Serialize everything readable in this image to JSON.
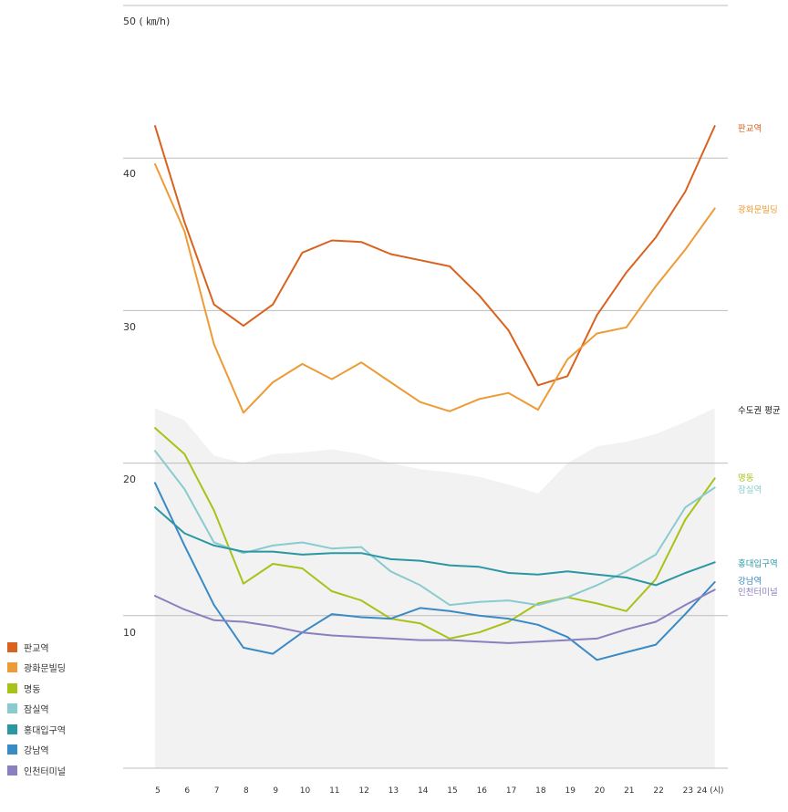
{
  "chart_data": {
    "type": "line",
    "y_unit_label": "50 ( ㎞/h)",
    "y_ticks": [
      "10",
      "20",
      "30",
      "40"
    ],
    "ylim": [
      0,
      50
    ],
    "x": [
      5,
      6,
      7,
      8,
      9,
      10,
      11,
      12,
      13,
      14,
      15,
      16,
      17,
      18,
      19,
      20,
      21,
      22,
      23,
      24
    ],
    "x_tick_labels": [
      "5",
      "6",
      "7",
      "8",
      "9",
      "10",
      "11",
      "12",
      "13",
      "14",
      "15",
      "16",
      "17",
      "18",
      "19",
      "20",
      "21",
      "22",
      "23",
      "24 (시)"
    ],
    "grid": true,
    "legend_position": "bottom-left",
    "area": {
      "name": "수도권 평균",
      "color": "#f2f2f2",
      "values": [
        23.6,
        22.8,
        20.5,
        20.0,
        20.6,
        20.7,
        20.9,
        20.6,
        20.0,
        19.6,
        19.4,
        19.1,
        18.6,
        18.0,
        20.0,
        21.1,
        21.4,
        21.9,
        22.7,
        23.6
      ]
    },
    "series": [
      {
        "name": "판교역",
        "color": "#d9621f",
        "values": [
          42.1,
          35.8,
          30.4,
          29.0,
          30.4,
          33.8,
          34.6,
          34.5,
          33.7,
          33.3,
          32.9,
          31.0,
          28.7,
          25.1,
          25.7,
          29.7,
          32.5,
          34.8,
          37.8,
          42.1
        ]
      },
      {
        "name": "광화문빌딩",
        "color": "#ee9b36",
        "values": [
          39.6,
          35.2,
          27.8,
          23.3,
          25.3,
          26.5,
          25.5,
          26.6,
          25.3,
          24.0,
          23.4,
          24.2,
          24.6,
          23.5,
          26.8,
          28.5,
          28.9,
          31.6,
          34.0,
          36.7
        ]
      },
      {
        "name": "명동",
        "color": "#a9c219",
        "values": [
          22.3,
          20.6,
          16.9,
          12.1,
          13.4,
          13.1,
          11.6,
          11.0,
          9.8,
          9.5,
          8.5,
          8.9,
          9.6,
          10.8,
          11.2,
          10.8,
          10.3,
          12.4,
          16.3,
          19.0
        ]
      },
      {
        "name": "잠실역",
        "color": "#89cbcf",
        "values": [
          20.8,
          18.3,
          14.8,
          14.1,
          14.6,
          14.8,
          14.4,
          14.5,
          12.9,
          12.0,
          10.7,
          10.9,
          11.0,
          10.7,
          11.2,
          12.0,
          12.9,
          14.0,
          17.1,
          18.4
        ]
      },
      {
        "name": "홍대입구역",
        "color": "#2a97a3",
        "values": [
          17.1,
          15.4,
          14.6,
          14.2,
          14.2,
          14.0,
          14.1,
          14.1,
          13.7,
          13.6,
          13.3,
          13.2,
          12.8,
          12.7,
          12.9,
          12.7,
          12.5,
          12.0,
          12.8,
          13.5
        ]
      },
      {
        "name": "강남역",
        "color": "#3a8bc4",
        "values": [
          18.7,
          14.6,
          10.7,
          7.9,
          7.5,
          8.9,
          10.1,
          9.9,
          9.8,
          10.5,
          10.3,
          10.0,
          9.8,
          9.4,
          8.6,
          7.1,
          7.6,
          8.1,
          10.1,
          12.2
        ]
      },
      {
        "name": "인천터미널",
        "color": "#8a7fbf",
        "values": [
          11.3,
          10.4,
          9.7,
          9.6,
          9.3,
          8.9,
          8.7,
          8.6,
          8.5,
          8.4,
          8.4,
          8.3,
          8.2,
          8.3,
          8.4,
          8.5,
          9.1,
          9.6,
          10.7,
          11.7
        ]
      }
    ],
    "end_labels": {
      "판교역": "판교역",
      "광화문빌딩": "광화문빌딩",
      "수도권 평균": "수도권 평균",
      "명동": "명동",
      "잠실역": "잠실역",
      "홍대입구역": "홍대입구역",
      "강남역": "강남역",
      "인천터미널": "인천터미널"
    },
    "colors": {
      "gridline": "#bdbdbd",
      "axis_text": "#333333",
      "end_label_average": "#111111"
    }
  }
}
